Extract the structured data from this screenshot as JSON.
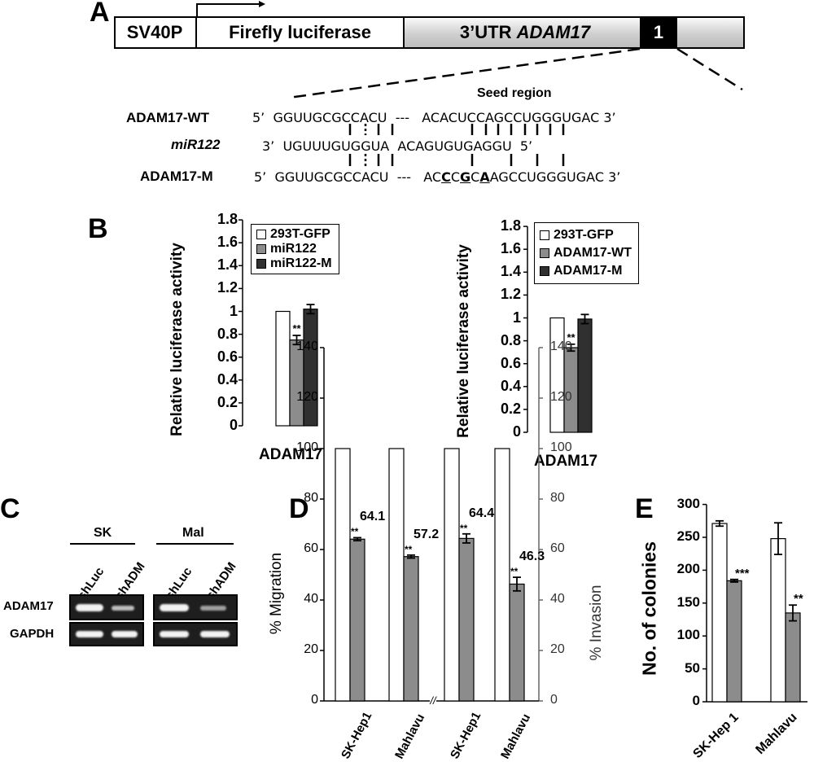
{
  "panels": {
    "A": "A",
    "B": "B",
    "C": "C",
    "D": "D",
    "E": "E"
  },
  "panelA": {
    "promoter": "SV40P",
    "reporter": "Firefly luciferase",
    "utr_prefix": "3’UTR ",
    "utr_gene": "ADAM17",
    "site_number": "1",
    "seed_region": "Seed region",
    "rows": [
      {
        "label": "ADAM17-WT",
        "seq": "5’  GGUUGCGCCACU  ---   ACACUCCAGCCUGGGUGAC 3’"
      },
      {
        "label": "miR122",
        "seq": "3’  UGUUUGUGGUA  ACAGUGUGAGGU  5’"
      },
      {
        "label": "ADAM17-M",
        "seq_parts": [
          "5’  GGUUGCGCCACU  ---   AC",
          "C",
          "C",
          "G",
          "C",
          "A",
          "AGCCUGGGUGAC 3’"
        ]
      }
    ]
  },
  "panelB": {
    "ylabel": "Relative luciferase activity",
    "left": {
      "xlabel": "ADAM17",
      "legend": [
        "293T-GFP",
        "miR122",
        "miR122-M"
      ],
      "sig": "**"
    },
    "right": {
      "xlabel": "ADAM17",
      "legend": [
        "293T-GFP",
        "ADAM17-WT",
        "ADAM17-M"
      ],
      "sig": "**"
    },
    "ticks": [
      "1.8",
      "1.6",
      "1.4",
      "1.2",
      "1",
      "0.8",
      "0.6",
      "0.4",
      "0.2",
      "0"
    ]
  },
  "panelC": {
    "groups": [
      "SK",
      "Mal"
    ],
    "lanes": [
      "shLuc",
      "shADM",
      "shLuc",
      "shADM"
    ],
    "rows": [
      "ADAM17",
      "GAPDH"
    ]
  },
  "panelD": {
    "ylabel_left": "% Migration",
    "ylabel_right": "% Invasion",
    "ticks": [
      "140",
      "120",
      "100",
      "80",
      "60",
      "40",
      "20",
      "0"
    ],
    "categories": [
      "SK-Hep1",
      "Mahlavu",
      "SK-Hep1",
      "Mahlavu"
    ],
    "value_labels": [
      "64.1",
      "57.2",
      "64.4",
      "46.3"
    ],
    "sig": "**",
    "break_mark": "//"
  },
  "panelE": {
    "ylabel": "No. of colonies",
    "ticks": [
      "300",
      "250",
      "200",
      "150",
      "100",
      "50",
      "0"
    ],
    "categories": [
      "SK-Hep 1",
      "Mahlavu"
    ],
    "sig": [
      "***",
      "**"
    ]
  },
  "chart_data": [
    {
      "type": "bar",
      "panel": "B-left",
      "categories": [
        "ADAM17"
      ],
      "series": [
        {
          "name": "293T-GFP",
          "values": [
            1.0
          ],
          "error": [
            0
          ],
          "color": "#ffffff"
        },
        {
          "name": "miR122",
          "values": [
            0.75
          ],
          "error": [
            0.04
          ],
          "color": "#8c8c8c"
        },
        {
          "name": "miR122-M",
          "values": [
            1.02
          ],
          "error": [
            0.04
          ],
          "color": "#303030"
        }
      ],
      "xlabel": "ADAM17",
      "ylabel": "Relative luciferase activity",
      "ylim": [
        0,
        1.8
      ],
      "legend": "top"
    },
    {
      "type": "bar",
      "panel": "B-right",
      "categories": [
        "ADAM17"
      ],
      "series": [
        {
          "name": "293T-GFP",
          "values": [
            1.0
          ],
          "error": [
            0
          ],
          "color": "#ffffff"
        },
        {
          "name": "ADAM17-WT",
          "values": [
            0.74
          ],
          "error": [
            0.03
          ],
          "color": "#8c8c8c"
        },
        {
          "name": "ADAM17-M",
          "values": [
            0.99
          ],
          "error": [
            0.04
          ],
          "color": "#303030"
        }
      ],
      "xlabel": "ADAM17",
      "ylabel": "Relative luciferase activity",
      "ylim": [
        0,
        1.8
      ],
      "legend": "top"
    },
    {
      "type": "bar",
      "panel": "D",
      "categories": [
        "SK-Hep1",
        "Mahlavu",
        "SK-Hep1",
        "Mahlavu"
      ],
      "series": [
        {
          "values": [
            100,
            100,
            100,
            100
          ],
          "error": [
            0,
            0,
            0,
            0
          ],
          "color": "#ffffff"
        },
        {
          "values": [
            64.1,
            57.2,
            64.4,
            46.3
          ],
          "error": [
            0.6,
            0.6,
            1.8,
            2.7
          ],
          "color": "#8c8c8c"
        }
      ],
      "ylabel": "% Migration",
      "ylabel_right": "% Invasion",
      "ylim": [
        0,
        140
      ]
    },
    {
      "type": "bar",
      "panel": "E",
      "categories": [
        "SK-Hep 1",
        "Mahlavu"
      ],
      "series": [
        {
          "values": [
            271,
            248
          ],
          "error": [
            4,
            24
          ],
          "color": "#ffffff"
        },
        {
          "values": [
            184,
            135
          ],
          "error": [
            2,
            12
          ],
          "color": "#8c8c8c"
        }
      ],
      "ylabel": "No. of colonies",
      "ylim": [
        0,
        300
      ]
    }
  ]
}
